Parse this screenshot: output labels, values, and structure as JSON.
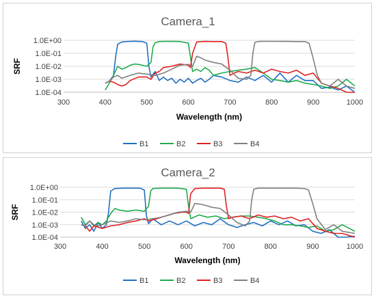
{
  "chart_data": [
    {
      "type": "line",
      "title": "Camera_1",
      "xlabel": "Wavelength (nm)",
      "ylabel": "SRF",
      "xlim": [
        300,
        1000
      ],
      "ylim": [
        0.0001,
        1.0
      ],
      "yscale": "log",
      "xticks": [
        "300",
        "400",
        "500",
        "600",
        "700",
        "800",
        "900",
        "1000"
      ],
      "yticks": [
        "1.0E-04",
        "1.0E-03",
        "1.0E-02",
        "1.0E-01",
        "1.0E+00"
      ],
      "grid": "horizontal",
      "legend_position": "bottom",
      "series": [
        {
          "name": "B1",
          "color": "#1f6fc2",
          "x": [
            400,
            410,
            420,
            425,
            430,
            440,
            450,
            470,
            490,
            500,
            505,
            510,
            520,
            530,
            540,
            550,
            560,
            570,
            580,
            590,
            600,
            610,
            620,
            630,
            640,
            650,
            660,
            680,
            700,
            720,
            740,
            760,
            780,
            800,
            820,
            840,
            860,
            880,
            900,
            920,
            940,
            960,
            980,
            1000
          ],
          "y": [
            0.0005,
            0.0007,
            0.002,
            0.05,
            0.5,
            0.75,
            0.8,
            0.85,
            0.8,
            0.6,
            0.01,
            0.0015,
            0.004,
            0.0008,
            0.0015,
            0.0008,
            0.0012,
            0.0005,
            0.001,
            0.0006,
            0.0012,
            0.0005,
            0.0008,
            0.0012,
            0.0006,
            0.001,
            0.002,
            0.0015,
            0.0008,
            0.0006,
            0.0015,
            0.0008,
            0.002,
            0.0006,
            0.003,
            0.0006,
            0.002,
            0.0008,
            0.0008,
            0.0002,
            0.00025,
            0.00015,
            0.0003,
            0.0001
          ]
        },
        {
          "name": "B2",
          "color": "#1faa4c",
          "x": [
            400,
            410,
            420,
            430,
            440,
            450,
            460,
            470,
            480,
            490,
            500,
            510,
            515,
            520,
            530,
            540,
            560,
            580,
            600,
            605,
            610,
            620,
            630,
            640,
            650,
            660,
            680,
            700,
            720,
            740,
            760,
            780,
            800,
            820,
            840,
            860,
            880,
            900,
            920,
            940,
            960,
            980,
            1000
          ],
          "y": [
            0.00015,
            0.0005,
            0.002,
            0.01,
            0.006,
            0.008,
            0.012,
            0.015,
            0.014,
            0.012,
            0.01,
            0.02,
            0.3,
            0.65,
            0.8,
            0.82,
            0.83,
            0.8,
            0.6,
            0.05,
            0.004,
            0.006,
            0.004,
            0.008,
            0.005,
            0.002,
            0.003,
            0.004,
            0.005,
            0.006,
            0.008,
            0.003,
            0.001,
            0.0008,
            0.0006,
            0.0008,
            0.0005,
            0.0004,
            0.0003,
            0.0002,
            0.0003,
            0.001,
            0.0003
          ]
        },
        {
          "name": "B3",
          "color": "#e02020",
          "x": [
            400,
            410,
            420,
            430,
            440,
            450,
            460,
            480,
            500,
            510,
            520,
            530,
            540,
            560,
            580,
            600,
            605,
            610,
            620,
            640,
            660,
            680,
            690,
            695,
            700,
            710,
            720,
            740,
            760,
            780,
            800,
            820,
            840,
            860,
            880,
            900,
            920,
            940,
            960,
            980,
            1000
          ],
          "y": [
            0.0005,
            0.0007,
            0.0006,
            0.0004,
            0.0003,
            0.0004,
            0.0008,
            0.0015,
            0.0015,
            0.001,
            0.003,
            0.004,
            0.008,
            0.01,
            0.015,
            0.012,
            0.008,
            0.1,
            0.75,
            0.82,
            0.8,
            0.8,
            0.6,
            0.05,
            0.002,
            0.003,
            0.004,
            0.003,
            0.005,
            0.003,
            0.006,
            0.004,
            0.003,
            0.005,
            0.002,
            0.003,
            0.0005,
            0.0003,
            0.0002,
            0.0001,
            0.0001
          ]
        },
        {
          "name": "B4",
          "color": "#7f7f7f",
          "x": [
            400,
            410,
            420,
            430,
            440,
            460,
            480,
            500,
            520,
            540,
            560,
            580,
            600,
            610,
            620,
            630,
            640,
            660,
            680,
            700,
            720,
            740,
            750,
            755,
            760,
            770,
            780,
            800,
            820,
            840,
            860,
            880,
            890,
            900,
            910,
            920,
            940,
            960,
            980,
            1000
          ],
          "y": [
            0.0005,
            0.0007,
            0.0015,
            0.002,
            0.0012,
            0.002,
            0.003,
            0.0025,
            0.002,
            0.003,
            0.006,
            0.012,
            0.014,
            0.01,
            0.06,
            0.045,
            0.03,
            0.02,
            0.015,
            0.005,
            0.0012,
            0.001,
            0.002,
            0.1,
            0.7,
            0.82,
            0.83,
            0.83,
            0.82,
            0.82,
            0.8,
            0.8,
            0.6,
            0.04,
            0.002,
            0.0005,
            0.0003,
            0.001,
            0.0003,
            0.0002
          ]
        }
      ]
    },
    {
      "type": "line",
      "title": "Camera_2",
      "xlabel": "Wavelength (nm)",
      "ylabel": "SRF",
      "xlim": [
        300,
        1000
      ],
      "ylim": [
        0.0001,
        1.0
      ],
      "yscale": "log",
      "xticks": [
        "300",
        "400",
        "500",
        "600",
        "700",
        "800",
        "900",
        "1000"
      ],
      "yticks": [
        "1.0E-04",
        "1.0E-03",
        "1.0E-02",
        "1.0E-01",
        "1.0E+00"
      ],
      "grid": "horizontal",
      "legend_position": "bottom",
      "series": [
        {
          "name": "B1",
          "color": "#1f6fc2",
          "x": [
            350,
            360,
            370,
            380,
            390,
            400,
            410,
            415,
            420,
            430,
            450,
            470,
            490,
            500,
            505,
            510,
            520,
            540,
            560,
            580,
            600,
            620,
            640,
            660,
            680,
            700,
            720,
            740,
            760,
            780,
            800,
            820,
            840,
            860,
            880,
            900,
            920,
            940,
            960,
            980,
            1000
          ],
          "y": [
            0.002,
            0.0005,
            0.001,
            0.0003,
            0.0015,
            0.0005,
            0.001,
            0.01,
            0.5,
            0.8,
            0.85,
            0.85,
            0.85,
            0.6,
            0.005,
            0.0012,
            0.003,
            0.001,
            0.002,
            0.001,
            0.002,
            0.0008,
            0.0015,
            0.001,
            0.003,
            0.001,
            0.0006,
            0.001,
            0.0015,
            0.0008,
            0.002,
            0.001,
            0.002,
            0.0008,
            0.001,
            0.0003,
            0.0002,
            0.0004,
            0.0001,
            0.0001,
            0.00012
          ]
        },
        {
          "name": "B2",
          "color": "#1faa4c",
          "x": [
            350,
            360,
            370,
            380,
            390,
            400,
            410,
            420,
            430,
            440,
            460,
            480,
            500,
            510,
            515,
            520,
            540,
            560,
            580,
            600,
            605,
            610,
            630,
            650,
            670,
            690,
            710,
            730,
            750,
            770,
            790,
            810,
            830,
            850,
            870,
            890,
            910,
            930,
            950,
            970,
            1000
          ],
          "y": [
            0.004,
            0.001,
            0.002,
            0.0008,
            0.0015,
            0.001,
            0.002,
            0.008,
            0.02,
            0.015,
            0.012,
            0.015,
            0.012,
            0.03,
            0.5,
            0.8,
            0.85,
            0.85,
            0.85,
            0.7,
            0.03,
            0.003,
            0.006,
            0.004,
            0.005,
            0.003,
            0.004,
            0.005,
            0.005,
            0.004,
            0.003,
            0.002,
            0.001,
            0.001,
            0.0008,
            0.0006,
            0.0008,
            0.0003,
            0.0004,
            0.001,
            0.0003
          ]
        },
        {
          "name": "B3",
          "color": "#e02020",
          "x": [
            350,
            360,
            370,
            380,
            400,
            420,
            440,
            460,
            480,
            500,
            510,
            530,
            550,
            570,
            590,
            600,
            605,
            610,
            620,
            640,
            660,
            680,
            690,
            695,
            700,
            710,
            730,
            750,
            770,
            790,
            810,
            830,
            850,
            870,
            890,
            910,
            930,
            950,
            970,
            1000
          ],
          "y": [
            0.001,
            0.0008,
            0.0003,
            0.0008,
            0.0005,
            0.0008,
            0.001,
            0.0015,
            0.002,
            0.003,
            0.002,
            0.003,
            0.005,
            0.008,
            0.01,
            0.01,
            0.008,
            0.3,
            0.8,
            0.85,
            0.85,
            0.85,
            0.7,
            0.03,
            0.003,
            0.004,
            0.005,
            0.003,
            0.006,
            0.004,
            0.005,
            0.003,
            0.004,
            0.002,
            0.003,
            0.0005,
            0.0003,
            0.0002,
            0.0002,
            0.0001
          ]
        },
        {
          "name": "B4",
          "color": "#7f7f7f",
          "x": [
            350,
            360,
            370,
            380,
            390,
            400,
            420,
            440,
            460,
            480,
            500,
            520,
            540,
            560,
            580,
            600,
            610,
            620,
            640,
            660,
            680,
            700,
            720,
            740,
            750,
            755,
            760,
            770,
            800,
            820,
            840,
            860,
            880,
            890,
            900,
            910,
            930,
            950,
            970,
            1000
          ],
          "y": [
            0.001,
            0.0008,
            0.002,
            0.001,
            0.0008,
            0.001,
            0.002,
            0.0015,
            0.002,
            0.003,
            0.0025,
            0.003,
            0.004,
            0.006,
            0.01,
            0.012,
            0.01,
            0.05,
            0.04,
            0.025,
            0.02,
            0.006,
            0.0015,
            0.0008,
            0.002,
            0.1,
            0.7,
            0.85,
            0.85,
            0.85,
            0.85,
            0.85,
            0.8,
            0.6,
            0.05,
            0.003,
            0.0004,
            0.001,
            0.0003,
            0.0002
          ]
        }
      ]
    }
  ]
}
